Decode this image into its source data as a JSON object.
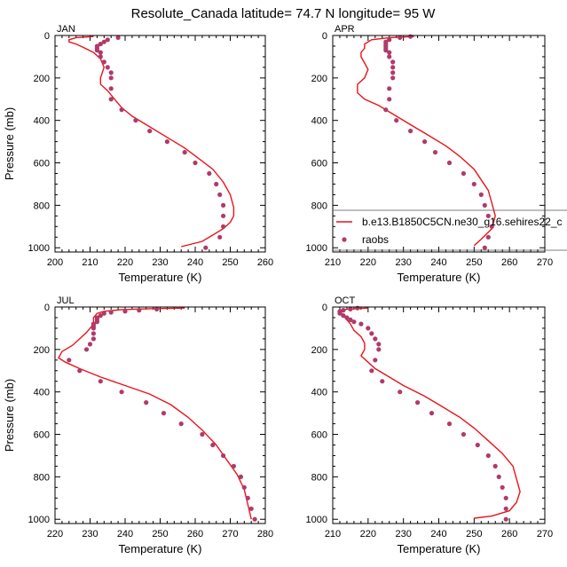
{
  "title": "Resolute_Canada  latitude= 74.7 N longitude= 95 W",
  "colors": {
    "model_line": "#e8141b",
    "obs_marker": "#b03a6a",
    "axis": "#000000"
  },
  "legend": {
    "panel": "APR",
    "line_label": "b.e13.B1850C5CN.ne30_g16.sehires22_c",
    "marker_label": "raobs"
  },
  "chart_data": [
    {
      "type": "line",
      "panel": "JAN",
      "xlabel": "Temperature (K)",
      "ylabel": "Pressure (mb)",
      "xlim": [
        200,
        260
      ],
      "ylim": [
        1020,
        0
      ],
      "xticks": [
        200,
        210,
        220,
        230,
        240,
        250,
        260
      ],
      "yticks": [
        0,
        200,
        400,
        600,
        800,
        1000
      ],
      "series": [
        {
          "kind": "line",
          "points": [
            [
              211,
              5
            ],
            [
              206,
              10
            ],
            [
              204,
              20
            ],
            [
              204,
              30
            ],
            [
              206,
              40
            ],
            [
              208,
              55
            ],
            [
              211,
              80
            ],
            [
              213,
              110
            ],
            [
              214,
              150
            ],
            [
              213,
              200
            ],
            [
              213,
              230
            ],
            [
              215,
              260
            ],
            [
              217,
              300
            ],
            [
              219,
              340
            ],
            [
              222,
              380
            ],
            [
              227,
              430
            ],
            [
              232,
              480
            ],
            [
              237,
              530
            ],
            [
              241,
              580
            ],
            [
              245,
              630
            ],
            [
              248,
              690
            ],
            [
              250,
              750
            ],
            [
              251,
              810
            ],
            [
              251,
              850
            ],
            [
              250,
              880
            ],
            [
              248,
              910
            ],
            [
              245,
              940
            ],
            [
              242,
              970
            ],
            [
              236,
              995
            ]
          ]
        },
        {
          "kind": "scatter",
          "name": "raobs",
          "points": [
            [
              218,
              10
            ],
            [
              215,
              20
            ],
            [
              214,
              30
            ],
            [
              213,
              40
            ],
            [
              212,
              50
            ],
            [
              212,
              60
            ],
            [
              212,
              70
            ],
            [
              213,
              80
            ],
            [
              213,
              100
            ],
            [
              214,
              125
            ],
            [
              215,
              150
            ],
            [
              216,
              175
            ],
            [
              216,
              200
            ],
            [
              216,
              250
            ],
            [
              216,
              300
            ],
            [
              219,
              350
            ],
            [
              223,
              400
            ],
            [
              227,
              450
            ],
            [
              232,
              500
            ],
            [
              237,
              550
            ],
            [
              240,
              600
            ],
            [
              244,
              650
            ],
            [
              246,
              700
            ],
            [
              247,
              750
            ],
            [
              248,
              800
            ],
            [
              248,
              850
            ],
            [
              248,
              900
            ],
            [
              247,
              950
            ],
            [
              243,
              1000
            ]
          ]
        }
      ]
    },
    {
      "type": "line",
      "panel": "APR",
      "xlabel": "Temperature (K)",
      "ylabel": "",
      "xlim": [
        210,
        270
      ],
      "ylim": [
        1020,
        0
      ],
      "xticks": [
        210,
        220,
        230,
        240,
        250,
        260,
        270
      ],
      "yticks": [
        0,
        200,
        400,
        600,
        800,
        1000
      ],
      "series": [
        {
          "kind": "line",
          "name": "b.e13.B1850C5CN.ne30_g16.sehires22_c",
          "points": [
            [
              233,
              5
            ],
            [
              226,
              10
            ],
            [
              221,
              20
            ],
            [
              219,
              40
            ],
            [
              219,
              60
            ],
            [
              218,
              80
            ],
            [
              218,
              100
            ],
            [
              219,
              130
            ],
            [
              220,
              160
            ],
            [
              219,
              200
            ],
            [
              217,
              230
            ],
            [
              217,
              270
            ],
            [
              219,
              300
            ],
            [
              223,
              330
            ],
            [
              227,
              370
            ],
            [
              232,
              420
            ],
            [
              237,
              470
            ],
            [
              242,
              520
            ],
            [
              246,
              570
            ],
            [
              250,
              630
            ],
            [
              252,
              680
            ],
            [
              254,
              730
            ],
            [
              255,
              790
            ],
            [
              256,
              850
            ],
            [
              255,
              910
            ],
            [
              252,
              960
            ],
            [
              250,
              990
            ]
          ]
        },
        {
          "kind": "scatter",
          "name": "raobs",
          "points": [
            [
              232,
              5
            ],
            [
              229,
              10
            ],
            [
              226,
              20
            ],
            [
              225,
              30
            ],
            [
              225,
              40
            ],
            [
              225,
              50
            ],
            [
              225,
              60
            ],
            [
              225,
              70
            ],
            [
              226,
              80
            ],
            [
              226,
              100
            ],
            [
              227,
              125
            ],
            [
              227,
              150
            ],
            [
              227,
              175
            ],
            [
              227,
              200
            ],
            [
              226,
              250
            ],
            [
              226,
              300
            ],
            [
              225,
              350
            ],
            [
              228,
              400
            ],
            [
              232,
              450
            ],
            [
              236,
              500
            ],
            [
              239,
              550
            ],
            [
              243,
              600
            ],
            [
              247,
              650
            ],
            [
              250,
              700
            ],
            [
              252,
              750
            ],
            [
              253,
              800
            ],
            [
              254,
              850
            ],
            [
              255,
              900
            ],
            [
              254,
              950
            ],
            [
              253,
              1000
            ]
          ]
        }
      ]
    },
    {
      "type": "line",
      "panel": "JUL",
      "xlabel": "Temperature (K)",
      "ylabel": "Pressure (mb)",
      "xlim": [
        220,
        280
      ],
      "ylim": [
        1020,
        0
      ],
      "xticks": [
        220,
        230,
        240,
        250,
        260,
        270,
        280
      ],
      "yticks": [
        0,
        200,
        400,
        600,
        800,
        1000
      ],
      "series": [
        {
          "kind": "line",
          "points": [
            [
              257,
              5
            ],
            [
              247,
              8
            ],
            [
              239,
              12
            ],
            [
              234,
              20
            ],
            [
              232,
              30
            ],
            [
              231,
              50
            ],
            [
              231,
              80
            ],
            [
              230,
              100
            ],
            [
              229,
              120
            ],
            [
              227,
              150
            ],
            [
              225,
              180
            ],
            [
              222,
              210
            ],
            [
              221,
              240
            ],
            [
              223,
              260
            ],
            [
              227,
              290
            ],
            [
              233,
              330
            ],
            [
              240,
              370
            ],
            [
              247,
              410
            ],
            [
              253,
              460
            ],
            [
              258,
              520
            ],
            [
              262,
              580
            ],
            [
              266,
              650
            ],
            [
              269,
              720
            ],
            [
              272,
              790
            ],
            [
              274,
              860
            ],
            [
              275,
              930
            ],
            [
              276,
              1000
            ]
          ]
        },
        {
          "kind": "scatter",
          "name": "raobs",
          "points": [
            [
              249,
              10
            ],
            [
              244,
              15
            ],
            [
              240,
              20
            ],
            [
              236,
              25
            ],
            [
              234,
              30
            ],
            [
              233,
              40
            ],
            [
              232,
              50
            ],
            [
              232,
              60
            ],
            [
              232,
              70
            ],
            [
              231,
              80
            ],
            [
              231,
              90
            ],
            [
              231,
              100
            ],
            [
              231,
              125
            ],
            [
              231,
              150
            ],
            [
              230,
              175
            ],
            [
              229,
              200
            ],
            [
              224,
              250
            ],
            [
              227,
              300
            ],
            [
              233,
              350
            ],
            [
              239,
              400
            ],
            [
              246,
              450
            ],
            [
              251,
              500
            ],
            [
              256,
              550
            ],
            [
              262,
              600
            ],
            [
              265,
              650
            ],
            [
              268,
              700
            ],
            [
              271,
              750
            ],
            [
              273,
              800
            ],
            [
              274,
              850
            ],
            [
              275,
              900
            ],
            [
              276,
              950
            ],
            [
              277,
              1000
            ]
          ]
        }
      ]
    },
    {
      "type": "line",
      "panel": "OCT",
      "xlabel": "Temperature (K)",
      "ylabel": "",
      "xlim": [
        210,
        270
      ],
      "ylim": [
        1020,
        0
      ],
      "xticks": [
        210,
        220,
        230,
        240,
        250,
        260,
        270
      ],
      "yticks": [
        0,
        200,
        400,
        600,
        800,
        1000
      ],
      "series": [
        {
          "kind": "line",
          "points": [
            [
              220,
              5
            ],
            [
              214,
              10
            ],
            [
              212,
              20
            ],
            [
              213,
              40
            ],
            [
              214,
              60
            ],
            [
              215,
              80
            ],
            [
              216,
              110
            ],
            [
              218,
              140
            ],
            [
              219,
              170
            ],
            [
              219,
              200
            ],
            [
              218,
              230
            ],
            [
              220,
              260
            ],
            [
              222,
              290
            ],
            [
              226,
              330
            ],
            [
              230,
              370
            ],
            [
              236,
              420
            ],
            [
              241,
              470
            ],
            [
              246,
              520
            ],
            [
              250,
              570
            ],
            [
              254,
              630
            ],
            [
              258,
              690
            ],
            [
              261,
              750
            ],
            [
              262,
              810
            ],
            [
              263,
              870
            ],
            [
              262,
              920
            ],
            [
              260,
              960
            ],
            [
              255,
              985
            ],
            [
              250,
              995
            ]
          ]
        },
        {
          "kind": "scatter",
          "name": "raobs",
          "points": [
            [
              217,
              5
            ],
            [
              215,
              10
            ],
            [
              213,
              15
            ],
            [
              212,
              20
            ],
            [
              212,
              25
            ],
            [
              212,
              30
            ],
            [
              213,
              40
            ],
            [
              214,
              50
            ],
            [
              215,
              60
            ],
            [
              216,
              70
            ],
            [
              218,
              80
            ],
            [
              220,
              100
            ],
            [
              221,
              125
            ],
            [
              222,
              150
            ],
            [
              223,
              175
            ],
            [
              223,
              200
            ],
            [
              222,
              250
            ],
            [
              221,
              300
            ],
            [
              224,
              350
            ],
            [
              229,
              400
            ],
            [
              234,
              450
            ],
            [
              238,
              500
            ],
            [
              243,
              550
            ],
            [
              247,
              600
            ],
            [
              251,
              650
            ],
            [
              254,
              700
            ],
            [
              256,
              750
            ],
            [
              257,
              800
            ],
            [
              258,
              850
            ],
            [
              259,
              900
            ],
            [
              259,
              950
            ],
            [
              259,
              1000
            ]
          ]
        }
      ]
    }
  ]
}
